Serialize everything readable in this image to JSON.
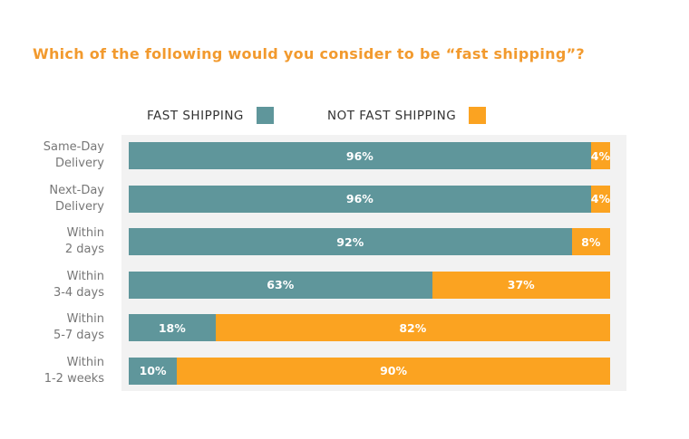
{
  "colors": {
    "fast": "#5f969b",
    "not_fast": "#fba321",
    "title": "#f29a2e"
  },
  "chart_data": {
    "type": "bar",
    "orientation": "horizontal",
    "stacked": true,
    "title": "Which of the following would you consider to be “fast shipping”?",
    "categories": [
      [
        "Same-Day",
        "Delivery"
      ],
      [
        "Next-Day",
        "Delivery"
      ],
      [
        "Within",
        "2 days"
      ],
      [
        "Within",
        "3-4 days"
      ],
      [
        "Within",
        "5-7 days"
      ],
      [
        "Within",
        "1-2 weeks"
      ]
    ],
    "series": [
      {
        "name": "FAST SHIPPING",
        "values": [
          96,
          96,
          92,
          63,
          18,
          10
        ]
      },
      {
        "name": "NOT FAST SHIPPING",
        "values": [
          4,
          4,
          8,
          37,
          82,
          90
        ]
      }
    ],
    "value_labels": [
      [
        "96%",
        "96%",
        "92%",
        "63%",
        "18%",
        "10%"
      ],
      [
        "4%",
        "4%",
        "8%",
        "37%",
        "82%",
        "90%"
      ]
    ],
    "xlim": [
      0,
      100
    ],
    "legend": "top",
    "grid": false
  }
}
